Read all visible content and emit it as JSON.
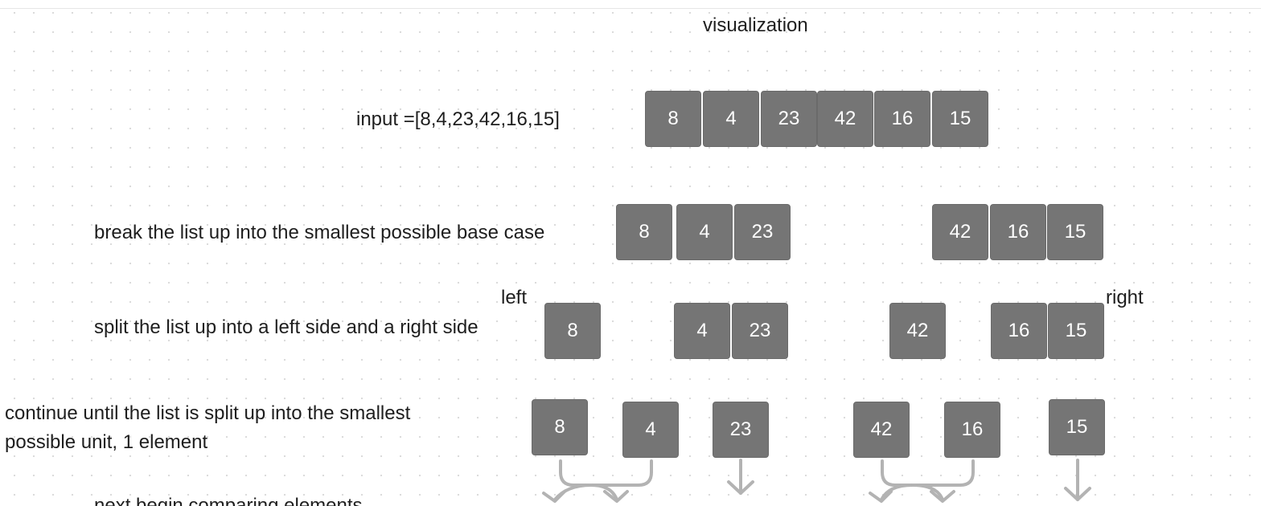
{
  "title": "visualization",
  "steps": {
    "input": "input =[8,4,23,42,16,15]",
    "break": "break the list up into the smallest possible base case",
    "split": "split the list up into a left side and a right side",
    "continue_line1": "continue until the list is split up into the smallest",
    "continue_line2": "possible unit, 1 element",
    "compare": "next begin comparing elements"
  },
  "labels": {
    "left": "left",
    "right": "right"
  },
  "rows": {
    "input": [
      "8",
      "4",
      "23",
      "42",
      "16",
      "15"
    ],
    "halves": [
      "8",
      "4",
      "23",
      "42",
      "16",
      "15"
    ],
    "split": [
      "8",
      "4",
      "23",
      "42",
      "16",
      "15"
    ],
    "singles": [
      "8",
      "4",
      "23",
      "42",
      "16",
      "15"
    ]
  },
  "colors": {
    "box": "#757575",
    "arrow": "#b3b3b3",
    "text": "#1e1e1e"
  }
}
